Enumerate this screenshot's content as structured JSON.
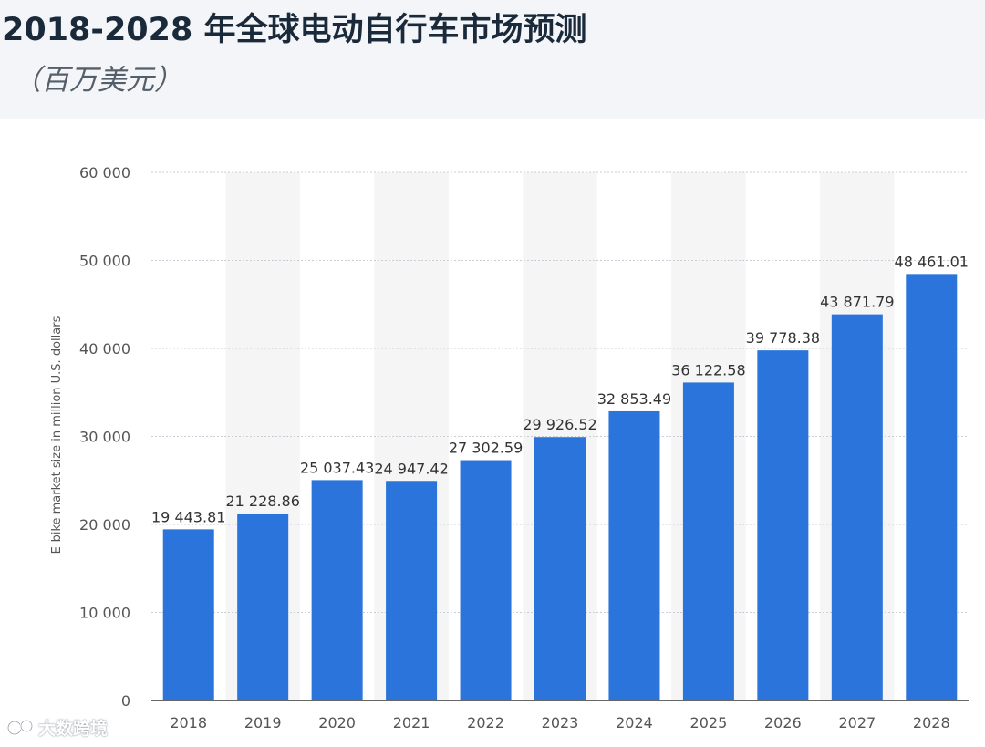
{
  "header": {
    "title": "2018-2028 年全球电动自行车市场预测",
    "subtitle": "（百万美元）"
  },
  "watermark": {
    "text": "大数跨境",
    "icon": "logo-icon"
  },
  "colors": {
    "bar": "#2a74dc",
    "band": "#f5f5f5",
    "grid": "#c9ced6",
    "axis": "#333333"
  },
  "chart_data": {
    "type": "bar",
    "title": "2018-2028 年全球电动自行车市场预测",
    "subtitle": "（百万美元）",
    "xlabel": "",
    "ylabel": "E-bike market size in million U.S. dollars",
    "categories": [
      "2018",
      "2019",
      "2020",
      "2021",
      "2022",
      "2023",
      "2024",
      "2025",
      "2026",
      "2027",
      "2028"
    ],
    "values": [
      19443.81,
      21228.86,
      25037.43,
      24947.42,
      27302.59,
      29926.52,
      32853.49,
      36122.58,
      39778.38,
      43871.79,
      48461.01
    ],
    "value_labels": [
      "19 443.81",
      "21 228.86",
      "25 037.43",
      "24 947.42",
      "27 302.59",
      "29 926.52",
      "32 853.49",
      "36 122.58",
      "39 778.38",
      "43 871.79",
      "48 461.01"
    ],
    "ylim": [
      0,
      60000
    ],
    "yticks": [
      0,
      10000,
      20000,
      30000,
      40000,
      50000,
      60000
    ],
    "ytick_labels": [
      "0",
      "10 000",
      "20 000",
      "30 000",
      "40 000",
      "50 000",
      "60 000"
    ],
    "grid": true,
    "legend": "none"
  }
}
